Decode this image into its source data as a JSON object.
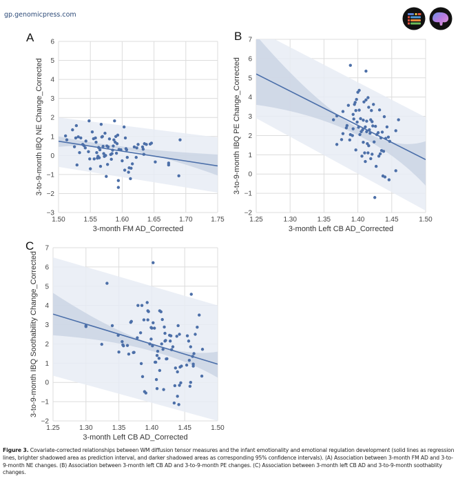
{
  "header": {
    "site_url": "gp.genomicpress.com",
    "logos": [
      "genomic-press-logo",
      "brain-logo"
    ]
  },
  "caption": {
    "label": "Figure 3.",
    "text": " Covariate-corrected relationships between WM diffusion tensor measures and the infant emotionality and emotional regulation development (solid lines as regression lines, brighter shadowed area as prediction interval, and darker shadowed areas as corresponding 95% confidence intervals). (A) Association between 3-month FM AD and 3-to-9-month NE changes. (B) Association between 3-month left CB AD and 3-to-9-month PE changes. (C) Association between 3-month left CB AD and 3-to-9-month soothablity changes."
  },
  "colors": {
    "point": "#4c6fa8",
    "line": "#4a6ea9",
    "ci": "#c9d3e4",
    "pi": "#e8ecf4",
    "grid": "#dcdcdc"
  },
  "chart_data": [
    {
      "panel": "A",
      "type": "scatter",
      "xlabel": "3-month FM AD_Corrected",
      "ylabel": "3-to-9-month IBQ NE Change_Corrected",
      "xlim": [
        1.5,
        1.75
      ],
      "ylim": [
        -3,
        6
      ],
      "xticks": [
        "1.50",
        "1.55",
        "1.60",
        "1.65",
        "1.70",
        "1.75"
      ],
      "yticks": [
        "−3",
        "−2",
        "−1",
        "0",
        "1",
        "2",
        "3",
        "4",
        "5",
        "6"
      ],
      "grid": true,
      "regression": {
        "x": [
          1.5,
          1.75
        ],
        "y": [
          0.75,
          -0.55
        ]
      },
      "ci": {
        "x": [
          1.5,
          1.6,
          1.75
        ],
        "upper": [
          1.0,
          0.42,
          0.05
        ],
        "lower": [
          0.45,
          0.25,
          -1.05
        ]
      },
      "pi": {
        "x": [
          1.5,
          1.75
        ],
        "upper": [
          2.0,
          0.95
        ],
        "lower": [
          -0.6,
          -1.95
        ]
      },
      "points": [
        [
          1.511,
          1.03
        ],
        [
          1.513,
          0.82
        ],
        [
          1.522,
          1.35
        ],
        [
          1.525,
          0.46
        ],
        [
          1.527,
          0.92
        ],
        [
          1.528,
          1.57
        ],
        [
          1.529,
          -0.5
        ],
        [
          1.531,
          0.98
        ],
        [
          1.533,
          0.15
        ],
        [
          1.535,
          0.92
        ],
        [
          1.538,
          0.58
        ],
        [
          1.54,
          0.52
        ],
        [
          1.542,
          0.4
        ],
        [
          1.543,
          0.76
        ],
        [
          1.547,
          0.2
        ],
        [
          1.548,
          1.82
        ],
        [
          1.549,
          -0.18
        ],
        [
          1.55,
          -0.7
        ],
        [
          1.553,
          1.24
        ],
        [
          1.555,
          0.88
        ],
        [
          1.556,
          -0.18
        ],
        [
          1.558,
          0.92
        ],
        [
          1.559,
          0.7
        ],
        [
          1.56,
          0.15
        ],
        [
          1.561,
          -0.14
        ],
        [
          1.562,
          -0.04
        ],
        [
          1.563,
          0.42
        ],
        [
          1.564,
          -0.12
        ],
        [
          1.565,
          0.3
        ],
        [
          1.566,
          -0.57
        ],
        [
          1.567,
          1.64
        ],
        [
          1.568,
          0.97
        ],
        [
          1.569,
          1.0
        ],
        [
          1.57,
          0.48
        ],
        [
          1.571,
          0.1
        ],
        [
          1.572,
          -0.05
        ],
        [
          1.573,
          1.17
        ],
        [
          1.574,
          0.0
        ],
        [
          1.575,
          -1.1
        ],
        [
          1.576,
          0.5
        ],
        [
          1.577,
          -0.47
        ],
        [
          1.578,
          0.45
        ],
        [
          1.58,
          0.87
        ],
        [
          1.582,
          0.05
        ],
        [
          1.583,
          -0.2
        ],
        [
          1.584,
          0.1
        ],
        [
          1.585,
          0.28
        ],
        [
          1.586,
          0.5
        ],
        [
          1.587,
          0.82
        ],
        [
          1.588,
          1.82
        ],
        [
          1.589,
          0.7
        ],
        [
          1.59,
          1.0
        ],
        [
          1.591,
          0.12
        ],
        [
          1.592,
          0.62
        ],
        [
          1.593,
          1.07
        ],
        [
          1.594,
          -1.32
        ],
        [
          1.594,
          -1.68
        ],
        [
          1.595,
          0.32
        ],
        [
          1.598,
          0.3
        ],
        [
          1.6,
          -0.28
        ],
        [
          1.603,
          1.5
        ],
        [
          1.604,
          -0.77
        ],
        [
          1.605,
          0.92
        ],
        [
          1.606,
          0.36
        ],
        [
          1.607,
          0.3
        ],
        [
          1.608,
          -0.1
        ],
        [
          1.61,
          -0.88
        ],
        [
          1.611,
          -0.65
        ],
        [
          1.613,
          -1.22
        ],
        [
          1.614,
          -0.67
        ],
        [
          1.616,
          -0.44
        ],
        [
          1.619,
          0.45
        ],
        [
          1.622,
          -0.1
        ],
        [
          1.623,
          0.4
        ],
        [
          1.625,
          0.58
        ],
        [
          1.632,
          0.45
        ],
        [
          1.633,
          0.33
        ],
        [
          1.634,
          0.06
        ],
        [
          1.635,
          0.62
        ],
        [
          1.638,
          0.58
        ],
        [
          1.644,
          0.6
        ],
        [
          1.646,
          0.65
        ],
        [
          1.652,
          -0.34
        ],
        [
          1.673,
          -0.4
        ],
        [
          1.673,
          -0.5
        ],
        [
          1.689,
          -1.07
        ],
        [
          1.691,
          0.82
        ]
      ]
    },
    {
      "panel": "B",
      "type": "scatter",
      "xlabel": "3-month Left CB AD_Corrected",
      "ylabel": "3-to-9-month IBQ PE Change_Corrected",
      "xlim": [
        1.25,
        1.5
      ],
      "ylim": [
        -2,
        7
      ],
      "xticks": [
        "1.25",
        "1.30",
        "1.35",
        "1.40",
        "1.45",
        "1.50"
      ],
      "yticks": [
        "−2",
        "−1",
        "0",
        "1",
        "2",
        "3",
        "4",
        "5",
        "6",
        "7"
      ],
      "grid": true,
      "regression": {
        "x": [
          1.25,
          1.5
        ],
        "y": [
          5.2,
          0.75
        ]
      },
      "ci": {
        "x": [
          1.25,
          1.41,
          1.5
        ],
        "upper": [
          7.2,
          2.55,
          1.7
        ],
        "lower": [
          3.6,
          2.15,
          -0.6
        ]
      },
      "pi": {
        "x": [
          1.25,
          1.5
        ],
        "upper": [
          7.5,
          2.95
        ],
        "lower": [
          2.9,
          -1.9
        ]
      },
      "points": [
        [
          1.364,
          2.82
        ],
        [
          1.369,
          3.02
        ],
        [
          1.369,
          1.54
        ],
        [
          1.376,
          1.79
        ],
        [
          1.378,
          2.1
        ],
        [
          1.378,
          3.25
        ],
        [
          1.383,
          2.4
        ],
        [
          1.384,
          2.52
        ],
        [
          1.386,
          3.57
        ],
        [
          1.388,
          1.77
        ],
        [
          1.389,
          5.65
        ],
        [
          1.389,
          2.05
        ],
        [
          1.392,
          2.0
        ],
        [
          1.393,
          3.1
        ],
        [
          1.393,
          2.35
        ],
        [
          1.394,
          2.86
        ],
        [
          1.395,
          3.62
        ],
        [
          1.396,
          3.72
        ],
        [
          1.397,
          1.25
        ],
        [
          1.397,
          3.3
        ],
        [
          1.398,
          3.88
        ],
        [
          1.399,
          2.7
        ],
        [
          1.4,
          4.25
        ],
        [
          1.401,
          2.43
        ],
        [
          1.402,
          4.35
        ],
        [
          1.402,
          3.32
        ],
        [
          1.403,
          2.05
        ],
        [
          1.404,
          2.88
        ],
        [
          1.405,
          2.2
        ],
        [
          1.406,
          0.93
        ],
        [
          1.407,
          2.3
        ],
        [
          1.408,
          2.8
        ],
        [
          1.408,
          1.65
        ],
        [
          1.409,
          3.75
        ],
        [
          1.41,
          1.1
        ],
        [
          1.411,
          2.45
        ],
        [
          1.411,
          0.65
        ],
        [
          1.412,
          5.35
        ],
        [
          1.412,
          3.85
        ],
        [
          1.413,
          2.75
        ],
        [
          1.413,
          2.2
        ],
        [
          1.414,
          1.58
        ],
        [
          1.415,
          3.97
        ],
        [
          1.415,
          1.1
        ],
        [
          1.416,
          1.47
        ],
        [
          1.416,
          3.47
        ],
        [
          1.417,
          2.3
        ],
        [
          1.418,
          2.12
        ],
        [
          1.419,
          0.8
        ],
        [
          1.419,
          2.82
        ],
        [
          1.42,
          3.3
        ],
        [
          1.421,
          1.03
        ],
        [
          1.421,
          2.72
        ],
        [
          1.422,
          2.5
        ],
        [
          1.423,
          3.62
        ],
        [
          1.424,
          1.67
        ],
        [
          1.425,
          -1.22
        ],
        [
          1.426,
          2.48
        ],
        [
          1.427,
          0.4
        ],
        [
          1.428,
          2.05
        ],
        [
          1.43,
          2.15
        ],
        [
          1.431,
          0.93
        ],
        [
          1.432,
          3.33
        ],
        [
          1.433,
          1.05
        ],
        [
          1.434,
          1.88
        ],
        [
          1.435,
          1.22
        ],
        [
          1.436,
          2.18
        ],
        [
          1.437,
          -0.1
        ],
        [
          1.438,
          1.18
        ],
        [
          1.439,
          2.98
        ],
        [
          1.44,
          -0.15
        ],
        [
          1.441,
          1.85
        ],
        [
          1.443,
          2.45
        ],
        [
          1.445,
          1.92
        ],
        [
          1.446,
          -0.3
        ],
        [
          1.447,
          1.7
        ],
        [
          1.456,
          2.25
        ],
        [
          1.456,
          0.17
        ],
        [
          1.46,
          2.82
        ]
      ]
    },
    {
      "panel": "C",
      "type": "scatter",
      "xlabel": "3-month Left CB AD_Corrected",
      "ylabel": "3-to-9-month IBQ Soothability Change_Corrected",
      "xlim": [
        1.25,
        1.5
      ],
      "ylim": [
        -2,
        7
      ],
      "xticks": [
        "1.25",
        "1.30",
        "1.35",
        "1.40",
        "1.45",
        "1.50"
      ],
      "yticks": [
        "−2",
        "−1",
        "0",
        "1",
        "2",
        "3",
        "4",
        "5",
        "6",
        "7"
      ],
      "grid": true,
      "regression": {
        "x": [
          1.25,
          1.5
        ],
        "y": [
          3.55,
          0.95
        ]
      },
      "ci": {
        "x": [
          1.25,
          1.41,
          1.5
        ],
        "upper": [
          4.65,
          2.1,
          1.6
        ],
        "lower": [
          2.45,
          1.7,
          0.25
        ]
      },
      "pi": {
        "x": [
          1.25,
          1.5
        ],
        "upper": [
          6.5,
          4.0
        ],
        "lower": [
          0.35,
          -2.0
        ]
      },
      "points": [
        [
          1.3,
          2.9
        ],
        [
          1.3,
          2.95
        ],
        [
          1.324,
          1.98
        ],
        [
          1.332,
          5.15
        ],
        [
          1.34,
          2.95
        ],
        [
          1.349,
          2.45
        ],
        [
          1.35,
          1.58
        ],
        [
          1.355,
          2.12
        ],
        [
          1.356,
          1.95
        ],
        [
          1.357,
          1.9
        ],
        [
          1.363,
          1.92
        ],
        [
          1.365,
          1.47
        ],
        [
          1.368,
          3.12
        ],
        [
          1.369,
          3.17
        ],
        [
          1.372,
          1.55
        ],
        [
          1.373,
          1.56
        ],
        [
          1.378,
          2.32
        ],
        [
          1.379,
          4.0
        ],
        [
          1.383,
          2.58
        ],
        [
          1.384,
          0.98
        ],
        [
          1.385,
          4.0
        ],
        [
          1.386,
          0.3
        ],
        [
          1.388,
          3.25
        ],
        [
          1.389,
          -0.48
        ],
        [
          1.391,
          -0.55
        ],
        [
          1.393,
          4.15
        ],
        [
          1.394,
          3.72
        ],
        [
          1.394,
          3.25
        ],
        [
          1.395,
          3.68
        ],
        [
          1.397,
          2.0
        ],
        [
          1.399,
          2.85
        ],
        [
          1.399,
          2.25
        ],
        [
          1.4,
          2.82
        ],
        [
          1.401,
          1.9
        ],
        [
          1.402,
          3.1
        ],
        [
          1.402,
          6.22
        ],
        [
          1.404,
          2.82
        ],
        [
          1.405,
          1.05
        ],
        [
          1.406,
          1.05
        ],
        [
          1.407,
          0.15
        ],
        [
          1.408,
          -0.32
        ],
        [
          1.408,
          1.4
        ],
        [
          1.409,
          1.62
        ],
        [
          1.411,
          1.25
        ],
        [
          1.412,
          3.72
        ],
        [
          1.412,
          0.62
        ],
        [
          1.414,
          3.67
        ],
        [
          1.415,
          2.0
        ],
        [
          1.416,
          3.27
        ],
        [
          1.417,
          1.72
        ],
        [
          1.418,
          -0.37
        ],
        [
          1.419,
          2.88
        ],
        [
          1.42,
          2.15
        ],
        [
          1.42,
          2.55
        ],
        [
          1.421,
          2.18
        ],
        [
          1.422,
          1.22
        ],
        [
          1.423,
          1.23
        ],
        [
          1.427,
          2.45
        ],
        [
          1.428,
          2.15
        ],
        [
          1.429,
          2.42
        ],
        [
          1.43,
          1.7
        ],
        [
          1.432,
          1.85
        ],
        [
          1.434,
          -1.07
        ],
        [
          1.435,
          -0.17
        ],
        [
          1.436,
          0.75
        ],
        [
          1.438,
          2.4
        ],
        [
          1.439,
          0.55
        ],
        [
          1.439,
          -0.72
        ],
        [
          1.44,
          2.95
        ],
        [
          1.441,
          -1.15
        ],
        [
          1.442,
          -0.15
        ],
        [
          1.442,
          2.5
        ],
        [
          1.443,
          0.8
        ],
        [
          1.444,
          -0.02
        ],
        [
          1.445,
          0.85
        ],
        [
          1.453,
          0.9
        ],
        [
          1.454,
          2.42
        ],
        [
          1.456,
          2.15
        ],
        [
          1.457,
          1.15
        ],
        [
          1.458,
          -0.2
        ],
        [
          1.459,
          1.85
        ],
        [
          1.459,
          0.0
        ],
        [
          1.46,
          4.58
        ],
        [
          1.462,
          1.35
        ],
        [
          1.463,
          0.85
        ],
        [
          1.463,
          0.95
        ],
        [
          1.464,
          1.5
        ],
        [
          1.466,
          2.5
        ],
        [
          1.469,
          2.87
        ],
        [
          1.472,
          3.5
        ],
        [
          1.476,
          0.33
        ],
        [
          1.477,
          1.72
        ]
      ]
    }
  ]
}
